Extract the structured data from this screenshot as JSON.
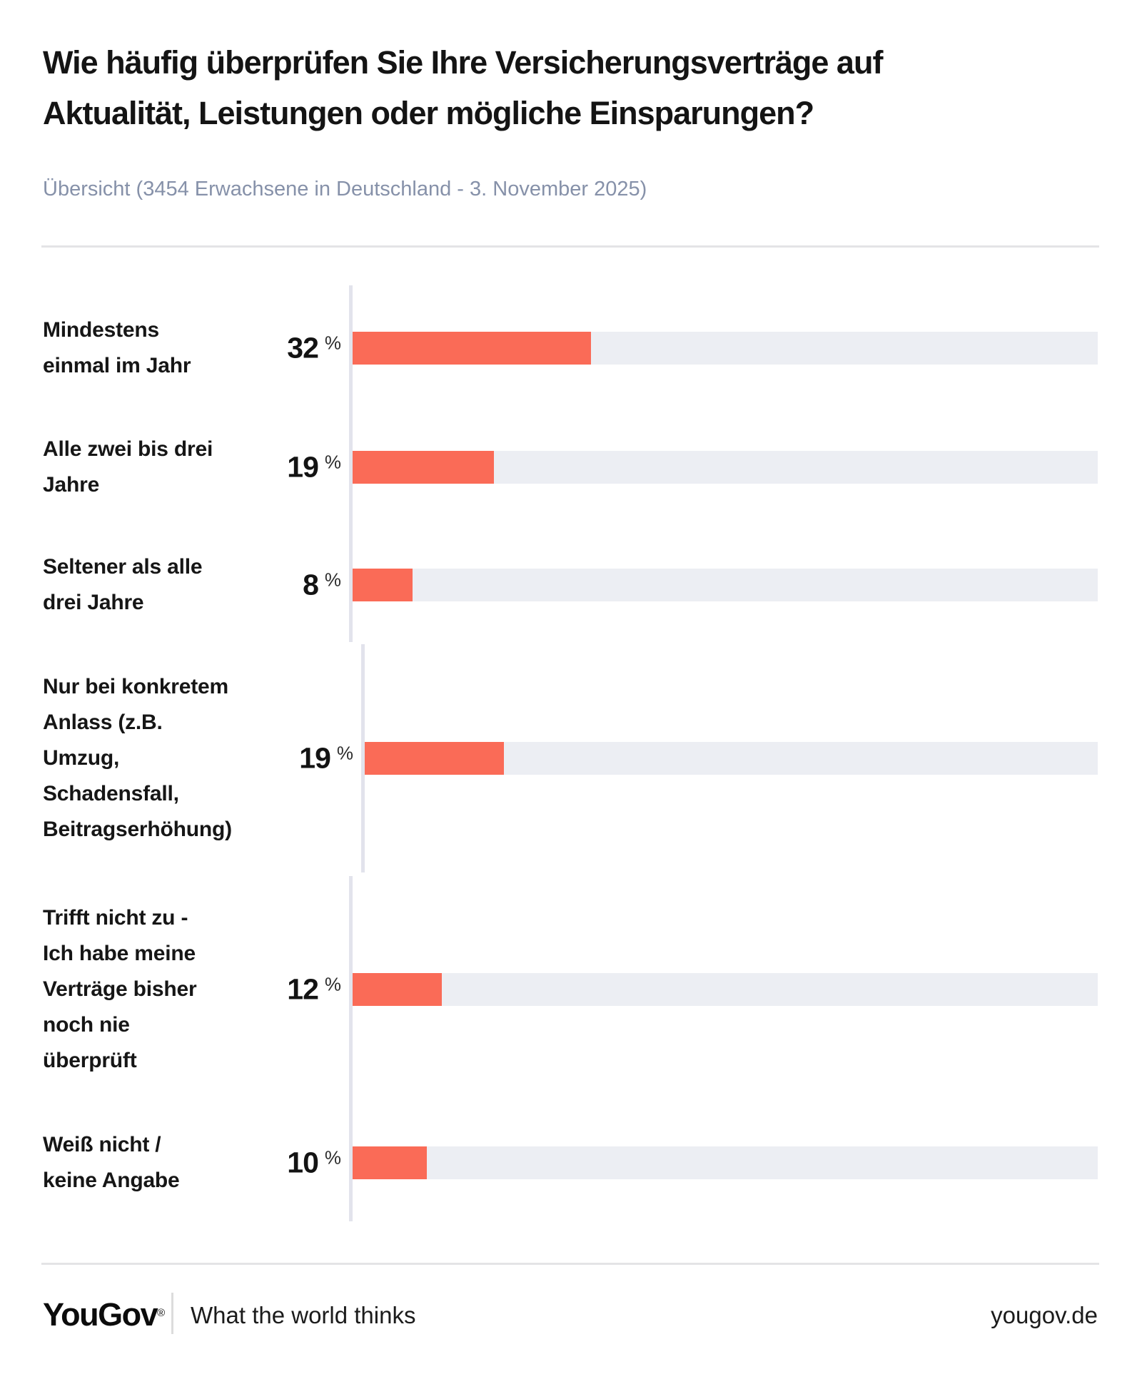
{
  "header": {
    "title": "Wie häufig überprüfen Sie Ihre Versicherungsverträge auf\nAktualität, Leistungen oder mögliche Einsparungen?",
    "subtitle": "Übersicht (3454 Erwachsene in Deutschland - 3. November 2025)"
  },
  "chart_data": {
    "type": "bar",
    "orientation": "horizontal",
    "unit": "%",
    "xlim": [
      0,
      100
    ],
    "bar_color": "#fa6b57",
    "track_color": "#eceef3",
    "categories": [
      "Mindestens einmal im Jahr",
      "Alle zwei bis drei Jahre",
      "Seltener als alle drei Jahre",
      "Nur bei konkretem Anlass (z.B. Umzug, Schadensfall, Beitragserhöhung)",
      "Trifft nicht zu - Ich habe meine Verträge bisher noch nie überprüft",
      "Weiß nicht / keine Angabe"
    ],
    "values": [
      32,
      19,
      8,
      19,
      12,
      10
    ],
    "rows": [
      {
        "label": "Mindestens\neinmal im Jahr",
        "value": 32,
        "value_display": "32"
      },
      {
        "label": "Alle zwei bis drei\nJahre",
        "value": 19,
        "value_display": "19"
      },
      {
        "label": "Seltener als alle\ndrei Jahre",
        "value": 8,
        "value_display": "8"
      },
      {
        "label": "Nur bei konkretem\nAnlass (z.B.\nUmzug,\nSchadensfall,\nBeitragserhöhung)",
        "value": 19,
        "value_display": "19"
      },
      {
        "label": "Trifft nicht zu -\nIch habe meine\nVerträge bisher\nnoch nie\nüberprüft",
        "value": 12,
        "value_display": "12"
      },
      {
        "label": "Weiß nicht /\nkeine Angabe",
        "value": 10,
        "value_display": "10"
      }
    ]
  },
  "footer": {
    "brand": "YouGov",
    "registered_mark": "®",
    "tagline": "What the world thinks",
    "site": "yougov.de"
  }
}
